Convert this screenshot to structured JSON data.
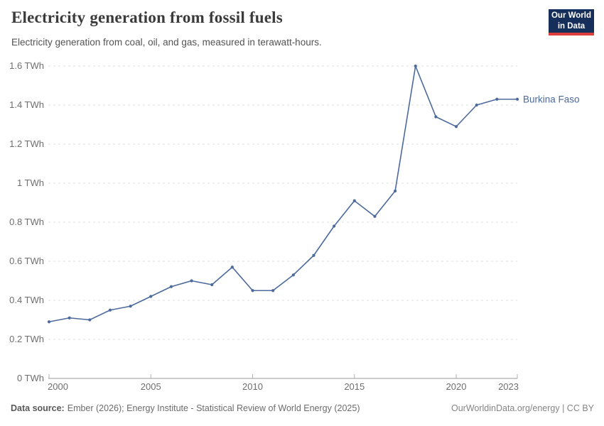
{
  "header": {
    "title": "Electricity generation from fossil fuels",
    "subtitle": "Electricity generation from coal, oil, and gas, measured in terawatt-hours."
  },
  "logo": {
    "line1": "Our World",
    "line2": "in Data"
  },
  "chart_data": {
    "type": "line",
    "title": "Electricity generation from fossil fuels",
    "subtitle": "Electricity generation from coal, oil, and gas, measured in terawatt-hours.",
    "unit": "TWh",
    "x": [
      2000,
      2001,
      2002,
      2003,
      2004,
      2005,
      2006,
      2007,
      2008,
      2009,
      2010,
      2011,
      2012,
      2013,
      2014,
      2015,
      2016,
      2017,
      2018,
      2019,
      2020,
      2021,
      2022,
      2023
    ],
    "series": [
      {
        "name": "Burkina Faso",
        "color": "#4c6a9c",
        "values": [
          0.29,
          0.31,
          0.3,
          0.35,
          0.37,
          0.42,
          0.47,
          0.5,
          0.48,
          0.57,
          0.45,
          0.45,
          0.53,
          0.63,
          0.78,
          0.91,
          0.83,
          0.96,
          1.6,
          1.34,
          1.29,
          1.4,
          1.43,
          1.43
        ]
      }
    ],
    "ylim": [
      0,
      1.6
    ],
    "yticks": [
      0,
      0.2,
      0.4,
      0.6,
      0.8,
      1,
      1.2,
      1.4,
      1.6
    ],
    "ytick_suffix": " TWh",
    "xticks": [
      2000,
      2005,
      2010,
      2015,
      2020,
      2023
    ],
    "grid": "horizontal-dashed",
    "legend_position": "end-of-line"
  },
  "footer": {
    "source_label": "Data source:",
    "source_text": "Ember (2026); Energy Institute - Statistical Review of World Energy (2025)",
    "credit": "OurWorldinData.org/energy | CC BY"
  }
}
